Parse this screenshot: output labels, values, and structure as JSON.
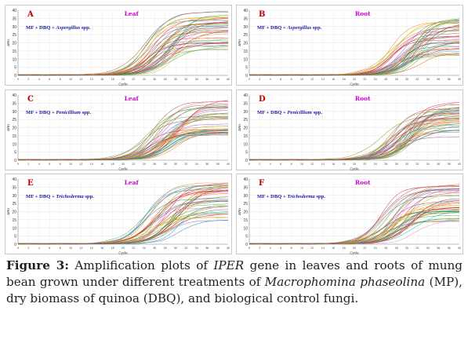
{
  "figure": {
    "caption": {
      "label": "Figure 3:",
      "t1": " Amplification plots of ",
      "i1": "IPER",
      "t2": " gene in leaves and roots of mung bean grown under different treatments of ",
      "i2": "Macrophomina phaseolina",
      "t3": " (MP), dry biomass of quinoa (DBQ), and biological control fungi."
    }
  },
  "colors": {
    "panel_letter": "#c00000",
    "tissue_label": "#d000d0",
    "treatment_text": "#1a1aa0",
    "palette": [
      "#e41a1c",
      "#377eb8",
      "#4daf4a",
      "#984ea3",
      "#ff7f00",
      "#a6a600",
      "#a65628",
      "#f781bf",
      "#1b9e77",
      "#d95f02",
      "#7570b3",
      "#e7298a",
      "#66a61e",
      "#e6ab02",
      "#17becf",
      "#bcbd22",
      "#2ca02c",
      "#d62728",
      "#9467bd",
      "#8c564b"
    ]
  },
  "chart_data": [
    {
      "type": "line",
      "panel": "A",
      "tissue": "Leaf",
      "treatment_prefix": "MF + DBQ + ",
      "treatment_organism": "Aspergillus",
      "treatment_suffix": " spp.",
      "xlabel": "Cycle",
      "ylabel": "ΔRn",
      "xlim": [
        0,
        40
      ],
      "ylim": [
        0,
        40
      ],
      "x_ticks": [
        0,
        2,
        4,
        6,
        8,
        10,
        12,
        14,
        16,
        18,
        20,
        22,
        24,
        26,
        28,
        30,
        32,
        34,
        36,
        38,
        40
      ],
      "y_ticks": [
        0,
        5,
        10,
        15,
        20,
        25,
        30,
        35,
        40
      ],
      "curve_model": "sigmoid",
      "n_curves": 40,
      "threshold_cycle_range": [
        24,
        31
      ],
      "plateau_range": [
        14,
        39
      ]
    },
    {
      "type": "line",
      "panel": "B",
      "tissue": "Root",
      "treatment_prefix": "MF + DBQ + ",
      "treatment_organism": "Aspergillus",
      "treatment_suffix": " spp.",
      "xlabel": "Cycle",
      "ylabel": "ΔRn",
      "xlim": [
        0,
        40
      ],
      "ylim": [
        0,
        40
      ],
      "x_ticks": [
        0,
        2,
        4,
        6,
        8,
        10,
        12,
        14,
        16,
        18,
        20,
        22,
        24,
        26,
        28,
        30,
        32,
        34,
        36,
        38,
        40
      ],
      "y_ticks": [
        0,
        5,
        10,
        15,
        20,
        25,
        30,
        35,
        40
      ],
      "curve_model": "sigmoid",
      "n_curves": 40,
      "threshold_cycle_range": [
        26,
        33
      ],
      "plateau_range": [
        12,
        35
      ]
    },
    {
      "type": "line",
      "panel": "C",
      "tissue": "Leaf",
      "treatment_prefix": "MF + DBQ + ",
      "treatment_organism": "Penicillium",
      "treatment_suffix": " spp.",
      "xlabel": "Cycle",
      "ylabel": "ΔRn",
      "xlim": [
        0,
        40
      ],
      "ylim": [
        0,
        40
      ],
      "x_ticks": [
        0,
        2,
        4,
        6,
        8,
        10,
        12,
        14,
        16,
        18,
        20,
        22,
        24,
        26,
        28,
        30,
        32,
        34,
        36,
        38,
        40
      ],
      "y_ticks": [
        0,
        5,
        10,
        15,
        20,
        25,
        30,
        35,
        40
      ],
      "curve_model": "sigmoid",
      "n_curves": 40,
      "threshold_cycle_range": [
        24,
        31
      ],
      "plateau_range": [
        15,
        37
      ]
    },
    {
      "type": "line",
      "panel": "D",
      "tissue": "Root",
      "treatment_prefix": "MF + DBQ + ",
      "treatment_organism": "Penicillium",
      "treatment_suffix": " spp.",
      "xlabel": "Cycle",
      "ylabel": "ΔRn",
      "xlim": [
        0,
        40
      ],
      "ylim": [
        0,
        40
      ],
      "x_ticks": [
        0,
        2,
        4,
        6,
        8,
        10,
        12,
        14,
        16,
        18,
        20,
        22,
        24,
        26,
        28,
        30,
        32,
        34,
        36,
        38,
        40
      ],
      "y_ticks": [
        0,
        5,
        10,
        15,
        20,
        25,
        30,
        35,
        40
      ],
      "curve_model": "sigmoid",
      "n_curves": 40,
      "threshold_cycle_range": [
        25,
        32
      ],
      "plateau_range": [
        14,
        36
      ]
    },
    {
      "type": "line",
      "panel": "E",
      "tissue": "Leaf",
      "treatment_prefix": "MF + DBQ + ",
      "treatment_organism": "Trichoderma",
      "treatment_suffix": " spp.",
      "xlabel": "Cycle",
      "ylabel": "ΔRn",
      "xlim": [
        0,
        40
      ],
      "ylim": [
        0,
        40
      ],
      "x_ticks": [
        0,
        2,
        4,
        6,
        8,
        10,
        12,
        14,
        16,
        18,
        20,
        22,
        24,
        26,
        28,
        30,
        32,
        34,
        36,
        38,
        40
      ],
      "y_ticks": [
        0,
        5,
        10,
        15,
        20,
        25,
        30,
        35,
        40
      ],
      "curve_model": "sigmoid",
      "n_curves": 40,
      "threshold_cycle_range": [
        24,
        31
      ],
      "plateau_range": [
        14,
        38
      ]
    },
    {
      "type": "line",
      "panel": "F",
      "tissue": "Root",
      "treatment_prefix": "MF + DBQ + ",
      "treatment_organism": "Trichoderma",
      "treatment_suffix": " spp.",
      "xlabel": "Cycle",
      "ylabel": "ΔRn",
      "xlim": [
        0,
        40
      ],
      "ylim": [
        0,
        40
      ],
      "x_ticks": [
        0,
        2,
        4,
        6,
        8,
        10,
        12,
        14,
        16,
        18,
        20,
        22,
        24,
        26,
        28,
        30,
        32,
        34,
        36,
        38,
        40
      ],
      "y_ticks": [
        0,
        5,
        10,
        15,
        20,
        25,
        30,
        35,
        40
      ],
      "curve_model": "sigmoid",
      "n_curves": 40,
      "threshold_cycle_range": [
        25,
        32
      ],
      "plateau_range": [
        13,
        37
      ]
    }
  ]
}
